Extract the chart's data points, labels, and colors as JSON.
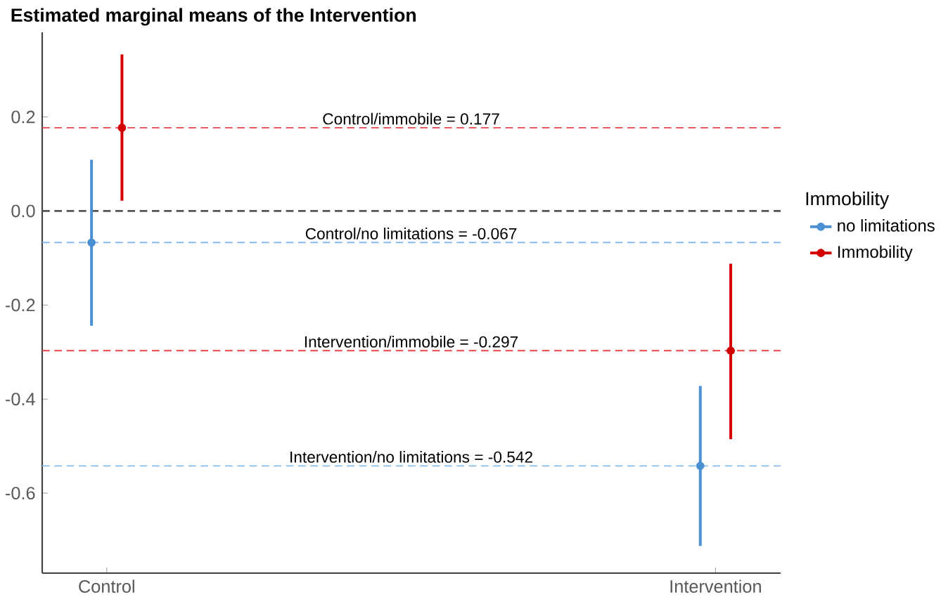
{
  "chart_data": {
    "type": "scatter",
    "title": "Estimated marginal means of the Intervention",
    "categories": [
      "Control",
      "Intervention"
    ],
    "series": [
      {
        "name": "no limitations",
        "color": "#4a90d2",
        "values": [
          -0.067,
          -0.542
        ],
        "errors": [
          [
            -0.244,
            0.109
          ],
          [
            -0.712,
            -0.372
          ]
        ]
      },
      {
        "name": "Immobility",
        "color": "#d40000",
        "values": [
          0.177,
          -0.297
        ],
        "errors": [
          [
            0.022,
            0.333
          ],
          [
            -0.485,
            -0.112
          ]
        ]
      }
    ],
    "legend_title": "Immobility",
    "legend": "right",
    "marker": "circle",
    "grid": false,
    "ylim": [
      -0.77,
      0.38
    ],
    "yticks": [
      {
        "value": -0.6,
        "label": "-0.6"
      },
      {
        "value": -0.4,
        "label": "-0.4"
      },
      {
        "value": -0.2,
        "label": "-0.2"
      },
      {
        "value": 0.0,
        "label": "0.0"
      },
      {
        "value": 0.2,
        "label": "0.2"
      }
    ],
    "ref_lines": [
      {
        "axis": "y",
        "value": 0.0,
        "color": "#555555",
        "line_style": "dashed"
      },
      {
        "axis": "y",
        "value": 0.177,
        "label": "Control/immobile = 0.177",
        "color": "#e8454c",
        "line_style": "dashed"
      },
      {
        "axis": "y",
        "value": -0.067,
        "label": "Control/no limitations = -0.067",
        "color": "#86bbea",
        "line_style": "dashed"
      },
      {
        "axis": "y",
        "value": -0.297,
        "label": "Intervention/immobile = -0.297",
        "color": "#e8454c",
        "line_style": "dashed"
      },
      {
        "axis": "y",
        "value": -0.542,
        "label": "Intervention/no limitations = -0.542",
        "color": "#86bbea",
        "line_style": "dashed"
      }
    ]
  }
}
